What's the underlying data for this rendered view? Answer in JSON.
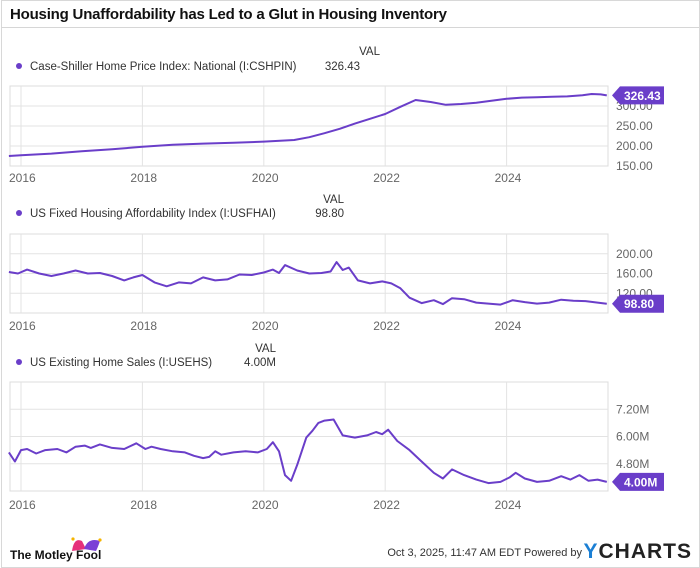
{
  "title": "Housing Unaffordability has Led to a Glut in Housing Inventory",
  "val_header": "VAL",
  "footer": {
    "timestamp": "Oct 3, 2025, 11:47 AM EDT",
    "powered_by": "Powered by",
    "ycharts_brand": "YCHARTS",
    "ycharts_y": "Y",
    "ycharts_rest": "CHARTS",
    "motley_fool": "The Motley Fool"
  },
  "colors": {
    "line": "#6a3ec9",
    "badge": "#6a3ec9",
    "grid": "#e3e3e3",
    "axis_text": "#666666"
  },
  "chart_data": [
    {
      "type": "line",
      "title": "Case-Shiller Home Price Index: National (I:CSHPIN)",
      "current_value_label": "326.43",
      "current_value": 326.43,
      "x_ticks": [
        "2016",
        "2018",
        "2020",
        "2022",
        "2024"
      ],
      "y_ticks": [
        "150.00",
        "200.00",
        "250.00",
        "300.00"
      ],
      "ylim": [
        150,
        350
      ],
      "xlim": [
        2015.8,
        2025.65
      ],
      "grid": true,
      "series": [
        {
          "name": "Case-Shiller Home Price Index: National",
          "x": [
            2015.8,
            2016.0,
            2016.5,
            2017.0,
            2017.5,
            2018.0,
            2018.5,
            2019.0,
            2019.5,
            2020.0,
            2020.5,
            2020.75,
            2021.0,
            2021.25,
            2021.5,
            2021.75,
            2022.0,
            2022.25,
            2022.5,
            2022.75,
            2023.0,
            2023.25,
            2023.5,
            2023.75,
            2024.0,
            2024.25,
            2024.5,
            2024.75,
            2025.0,
            2025.25,
            2025.4,
            2025.55,
            2025.65
          ],
          "y": [
            175,
            177,
            181,
            187,
            192,
            198,
            203,
            206,
            208,
            211,
            215,
            222,
            232,
            243,
            256,
            268,
            280,
            298,
            315,
            310,
            303,
            305,
            308,
            313,
            318,
            321,
            322,
            323,
            324,
            327,
            330,
            329,
            326.43
          ]
        }
      ]
    },
    {
      "type": "line",
      "title": "US Fixed Housing Affordability Index (I:USFHAI)",
      "current_value_label": "98.80",
      "current_value": 98.8,
      "x_ticks": [
        "2016",
        "2018",
        "2020",
        "2022",
        "2024"
      ],
      "y_ticks": [
        "120.00",
        "160.00",
        "200.00"
      ],
      "ylim": [
        80,
        240
      ],
      "xlim": [
        2015.8,
        2025.65
      ],
      "grid": true,
      "series": [
        {
          "name": "US Fixed Housing Affordability Index",
          "x": [
            2015.8,
            2015.95,
            2016.1,
            2016.3,
            2016.5,
            2016.7,
            2016.9,
            2017.1,
            2017.3,
            2017.5,
            2017.7,
            2017.85,
            2018.0,
            2018.2,
            2018.4,
            2018.6,
            2018.8,
            2019.0,
            2019.2,
            2019.4,
            2019.6,
            2019.8,
            2020.0,
            2020.15,
            2020.25,
            2020.35,
            2020.55,
            2020.75,
            2020.95,
            2021.1,
            2021.2,
            2021.3,
            2021.4,
            2021.55,
            2021.75,
            2021.95,
            2022.1,
            2022.25,
            2022.4,
            2022.6,
            2022.8,
            2022.95,
            2023.1,
            2023.3,
            2023.5,
            2023.7,
            2023.9,
            2024.1,
            2024.3,
            2024.5,
            2024.7,
            2024.9,
            2025.1,
            2025.3,
            2025.5,
            2025.65
          ],
          "y": [
            163,
            160,
            168,
            160,
            155,
            160,
            166,
            160,
            161,
            155,
            146,
            152,
            157,
            142,
            134,
            142,
            140,
            152,
            146,
            148,
            158,
            157,
            162,
            168,
            161,
            177,
            166,
            160,
            161,
            164,
            183,
            167,
            172,
            146,
            140,
            144,
            140,
            130,
            111,
            100,
            106,
            98,
            110,
            108,
            101,
            99,
            97,
            106,
            102,
            99,
            101,
            107,
            105,
            104,
            101,
            98.8
          ]
        }
      ]
    },
    {
      "type": "line",
      "title": "US Existing Home Sales (I:USEHS)",
      "current_value_label": "4.00M",
      "current_value": 4.0,
      "x_ticks": [
        "2016",
        "2018",
        "2020",
        "2022",
        "2024"
      ],
      "y_ticks": [
        "4.80M",
        "6.00M",
        "7.20M"
      ],
      "ylim": [
        3.6,
        8.4
      ],
      "y_units": "millions",
      "xlim": [
        2015.8,
        2025.65
      ],
      "grid": true,
      "series": [
        {
          "name": "US Existing Home Sales",
          "x": [
            2015.8,
            2015.9,
            2016.0,
            2016.1,
            2016.25,
            2016.4,
            2016.6,
            2016.75,
            2016.9,
            2017.05,
            2017.15,
            2017.3,
            2017.5,
            2017.7,
            2017.9,
            2018.05,
            2018.15,
            2018.3,
            2018.5,
            2018.7,
            2018.85,
            2019.0,
            2019.1,
            2019.2,
            2019.3,
            2019.5,
            2019.7,
            2019.9,
            2020.05,
            2020.15,
            2020.25,
            2020.35,
            2020.45,
            2020.55,
            2020.7,
            2020.8,
            2020.9,
            2021.0,
            2021.15,
            2021.3,
            2021.5,
            2021.7,
            2021.85,
            2021.95,
            2022.05,
            2022.2,
            2022.4,
            2022.6,
            2022.8,
            2022.95,
            2023.1,
            2023.3,
            2023.5,
            2023.7,
            2023.9,
            2024.05,
            2024.15,
            2024.3,
            2024.5,
            2024.7,
            2024.9,
            2025.05,
            2025.2,
            2025.35,
            2025.5,
            2025.65
          ],
          "y": [
            5.3,
            4.9,
            5.4,
            5.45,
            5.25,
            5.4,
            5.45,
            5.3,
            5.55,
            5.6,
            5.5,
            5.65,
            5.5,
            5.45,
            5.7,
            5.45,
            5.55,
            5.45,
            5.35,
            5.3,
            5.15,
            5.05,
            5.1,
            5.35,
            5.2,
            5.3,
            5.35,
            5.3,
            5.45,
            5.75,
            5.35,
            4.3,
            4.05,
            4.75,
            5.95,
            6.25,
            6.6,
            6.7,
            6.75,
            6.05,
            5.95,
            6.05,
            6.2,
            6.1,
            6.3,
            5.8,
            5.4,
            4.9,
            4.4,
            4.15,
            4.55,
            4.3,
            4.1,
            3.95,
            4.0,
            4.2,
            4.4,
            4.15,
            4.0,
            4.05,
            4.25,
            4.1,
            4.3,
            4.05,
            4.1,
            4.0
          ]
        }
      ]
    }
  ]
}
